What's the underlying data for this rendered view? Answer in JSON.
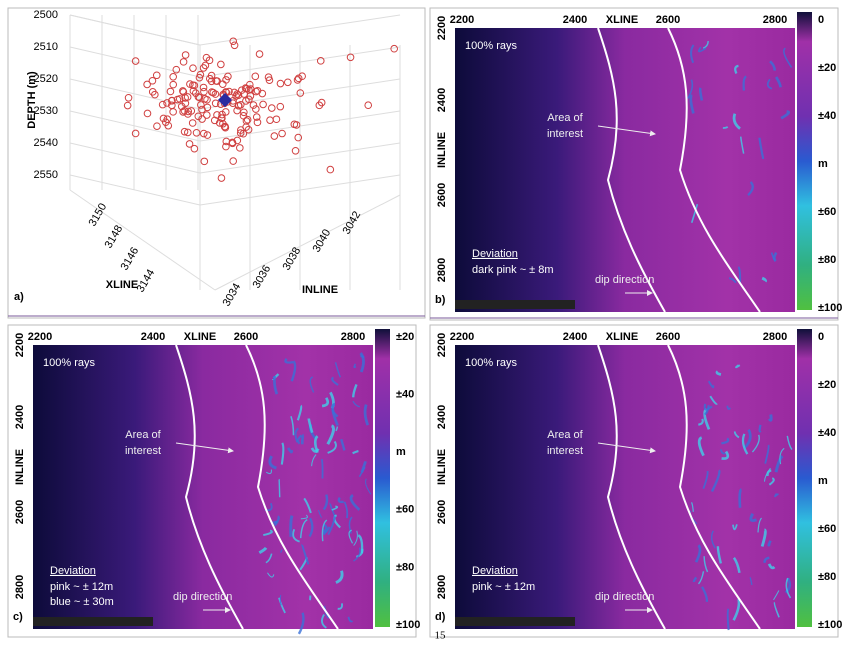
{
  "panels": [
    {
      "label": "a)",
      "depth_label": "DEPTH (m)",
      "depth_ticks": [
        2500,
        2510,
        2520,
        2530,
        2540,
        2550
      ],
      "xline_label": "XLINE",
      "xline_ticks": [
        3150,
        3148,
        3146,
        3144
      ],
      "inline_label": "INLINE",
      "inline_ticks": [
        3034,
        3036,
        3038,
        3040,
        3042
      ]
    },
    {
      "label": "b)",
      "title": "100% rays",
      "xline_label": "XLINE",
      "xline_ticks": [
        2200,
        2400,
        2600,
        2800
      ],
      "inline_label": "INLINE",
      "inline_ticks": [
        2200,
        2400,
        2600,
        2800
      ],
      "annotation": [
        "Area of",
        "interest"
      ],
      "deviation_title": "Deviation",
      "deviation_lines": [
        "dark pink ~ ± 8m"
      ],
      "dip": "dip direction",
      "colorbar_ticks": [
        "0",
        "±20",
        "±40",
        "m",
        "±60",
        "±80",
        "±100"
      ]
    },
    {
      "label": "c)",
      "title": "100% rays",
      "xline_label": "XLINE",
      "xline_ticks": [
        2200,
        2400,
        2600,
        2800
      ],
      "inline_label": "INLINE",
      "inline_ticks": [
        2200,
        2400,
        2600,
        2800
      ],
      "annotation": [
        "Area of",
        "interest"
      ],
      "deviation_title": "Deviation",
      "deviation_lines": [
        "pink ~ ± 12m",
        "blue ~ ± 30m"
      ],
      "dip": "dip direction",
      "colorbar_ticks": [
        "±20",
        "±40",
        "m",
        "±60",
        "±80",
        "±100"
      ]
    },
    {
      "label": "d)",
      "title": "100% rays",
      "xline_label": "XLINE",
      "xline_ticks": [
        2200,
        2400,
        2600,
        2800
      ],
      "inline_label": "INLINE",
      "inline_ticks": [
        2200,
        2400,
        2600,
        2800
      ],
      "annotation": [
        "Area of",
        "interest"
      ],
      "deviation_title": "Deviation",
      "deviation_lines": [
        "pink ~ ± 12m"
      ],
      "dip": "dip direction",
      "colorbar_ticks": [
        "0",
        "±20",
        "±40",
        "m",
        "±60",
        "±80",
        "±100"
      ]
    }
  ],
  "page_number": "15"
}
